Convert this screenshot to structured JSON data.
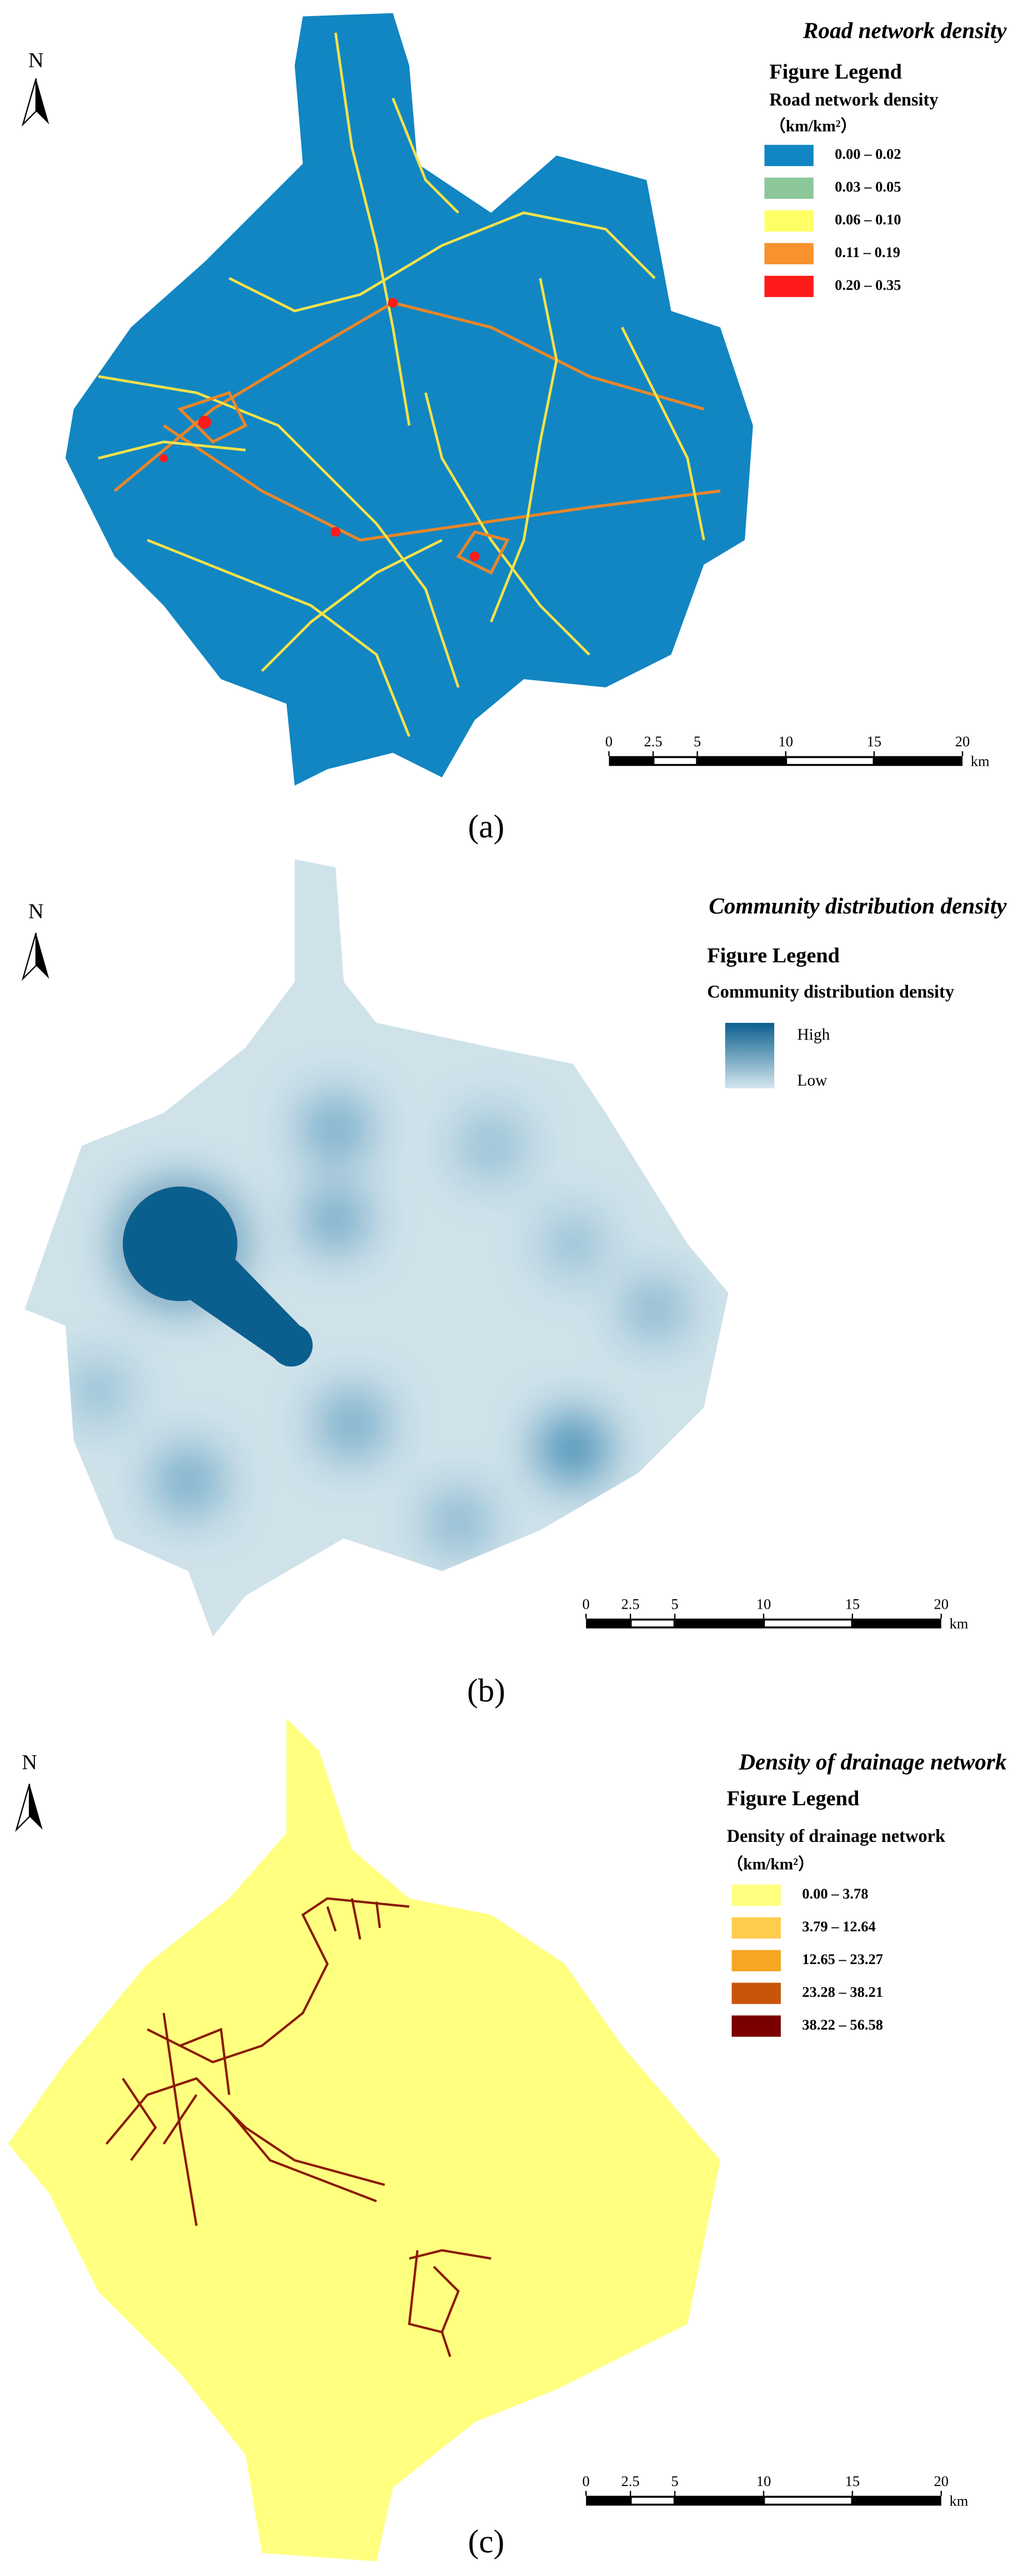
{
  "panels": [
    {
      "north": "N",
      "title": "Road network density",
      "legend": {
        "heading": "Figure Legend",
        "title": "Road network density",
        "unit": "（km/km²）",
        "items": [
          {
            "label": "0.00 – 0.02",
            "color": "#1286c2"
          },
          {
            "label": "0.03 – 0.05",
            "color": "#8cc79a"
          },
          {
            "label": "0.06 – 0.10",
            "color": "#ffff66"
          },
          {
            "label": "0.11 – 0.19",
            "color": "#f7922f"
          },
          {
            "label": "0.20 – 0.35",
            "color": "#ff1a1a"
          }
        ]
      },
      "scale": {
        "ticks": [
          0,
          2.5,
          5,
          10,
          15,
          20
        ],
        "unit": "km"
      },
      "caption": "(a)"
    },
    {
      "north": "N",
      "title": "Community distribution density",
      "legend": {
        "heading": "Figure Legend",
        "title": "Community distribution density",
        "high": "High",
        "low": "Low",
        "colors": [
          "#0b5f8e",
          "#d3e6ee"
        ]
      },
      "scale": {
        "ticks": [
          0,
          2.5,
          5,
          10,
          15,
          20
        ],
        "unit": "km"
      },
      "caption": "(b)"
    },
    {
      "north": "N",
      "title": "Density of drainage network",
      "legend": {
        "heading": "Figure Legend",
        "title": "Density of drainage network",
        "unit": "（km/km²）",
        "items": [
          {
            "label": "0.00 – 3.78",
            "color": "#ffff80"
          },
          {
            "label": "3.79 – 12.64",
            "color": "#ffcc4d"
          },
          {
            "label": "12.65 – 23.27",
            "color": "#f5a623"
          },
          {
            "label": "23.28 – 38.21",
            "color": "#c8550a"
          },
          {
            "label": "38.22 – 56.58",
            "color": "#7a0000"
          }
        ]
      },
      "scale": {
        "ticks": [
          0,
          2.5,
          5,
          10,
          15,
          20
        ],
        "unit": "km"
      },
      "caption": "(c)"
    }
  ]
}
